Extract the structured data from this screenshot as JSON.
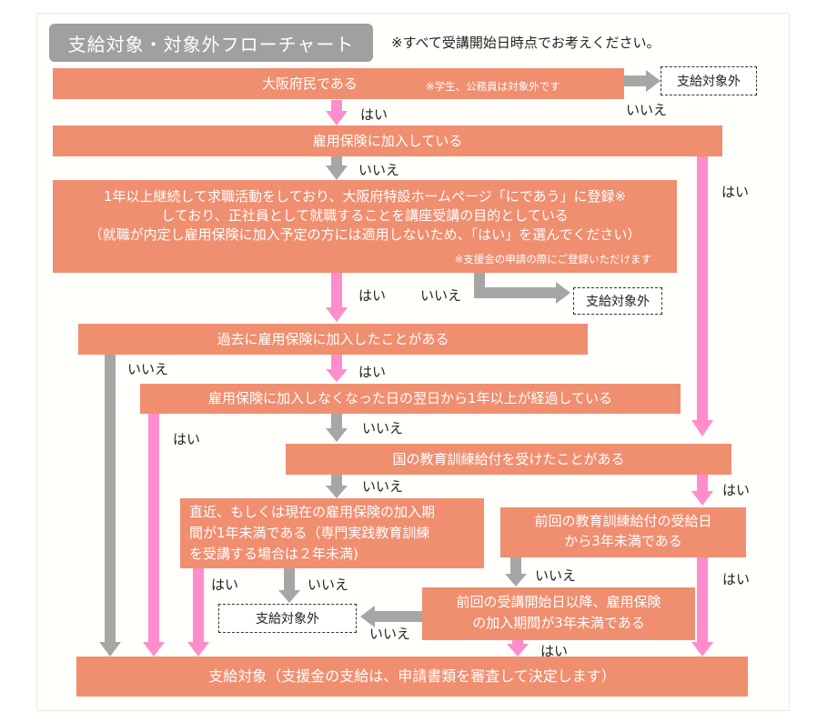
{
  "header": {
    "title": "支給対象・対象外フローチャート",
    "note": "※すべて受講開始日時点でお考えください。"
  },
  "nodes": {
    "q1": {
      "text": "大阪府民である",
      "note": "※学生、公務員は対象外です"
    },
    "q2": {
      "text": "雇用保険に加入している"
    },
    "q3": {
      "line1": "1年以上継続して求職活動をしており、大阪府特設ホームページ「にであう」に登録※",
      "line2": "しており、正社員として就職することを講座受講の目的としている",
      "line3": "（就職が内定し雇用保険に加入予定の方には適用しないため、「はい」を選んでください）",
      "note": "※支援金の申請の際にご登録いただけます"
    },
    "q4": {
      "text": "過去に雇用保険に加入したことがある"
    },
    "q5": {
      "text": "雇用保険に加入しなくなった日の翌日から1年以上が経過している"
    },
    "q6": {
      "text": "国の教育訓練給付を受けたことがある"
    },
    "q7": {
      "line1": "直近、もしくは現在の雇用保険の加入期",
      "line2": "間が1年未満である（専門実践教育訓練",
      "line3": "を受講する場合は２年未満)"
    },
    "q8": {
      "line1": "前回の教育訓練給付の受給日",
      "line2": "から3年未満である"
    },
    "q9": {
      "line1": "前回の受講開始日以降、雇用保険",
      "line2": "の加入期間が3年未満である"
    },
    "result": {
      "text": "支給対象（支援金の支給は、申請書類を審査して決定します）"
    }
  },
  "outcomes": {
    "excluded1": "支給対象外",
    "excluded2": "支給対象外",
    "excluded3": "支給対象外"
  },
  "labels": {
    "yes": "はい",
    "no": "いいえ"
  },
  "colors": {
    "box": "#f08e70",
    "pink_arrow": "#ff8ccc",
    "gray_arrow": "#a6a6a6",
    "title_bg": "#a0a0a0"
  }
}
